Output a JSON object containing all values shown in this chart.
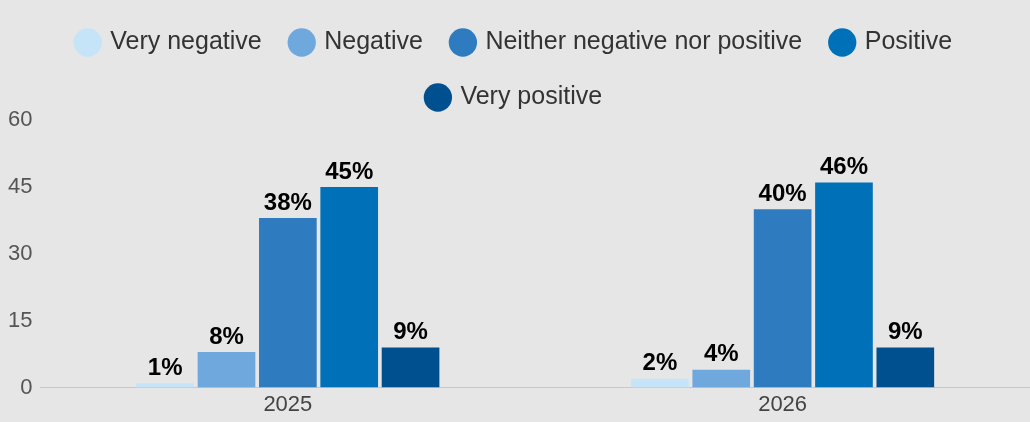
{
  "chart_data": {
    "type": "bar",
    "categories": [
      "2025",
      "2026"
    ],
    "series": [
      {
        "name": "Very negative",
        "color": "#c6e4f7",
        "values": [
          1,
          2
        ],
        "value_labels": [
          "1%",
          "2%"
        ]
      },
      {
        "name": "Negative",
        "color": "#6fa8dc",
        "values": [
          8,
          4
        ],
        "value_labels": [
          "8%",
          "4%"
        ]
      },
      {
        "name": "Neither negative nor positive",
        "color": "#2f7bbf",
        "values": [
          38,
          40
        ],
        "value_labels": [
          "38%",
          "40%"
        ]
      },
      {
        "name": "Positive",
        "color": "#0070b8",
        "values": [
          45,
          46
        ],
        "value_labels": [
          "45%",
          "46%"
        ]
      },
      {
        "name": "Very positive",
        "color": "#004f8f",
        "values": [
          9,
          9
        ],
        "value_labels": [
          "9%",
          "9%"
        ]
      }
    ],
    "ylim": [
      0,
      60
    ],
    "yticks": [
      0,
      15,
      30,
      45,
      60
    ],
    "grid": false,
    "legend": "top",
    "marker": "circle"
  }
}
